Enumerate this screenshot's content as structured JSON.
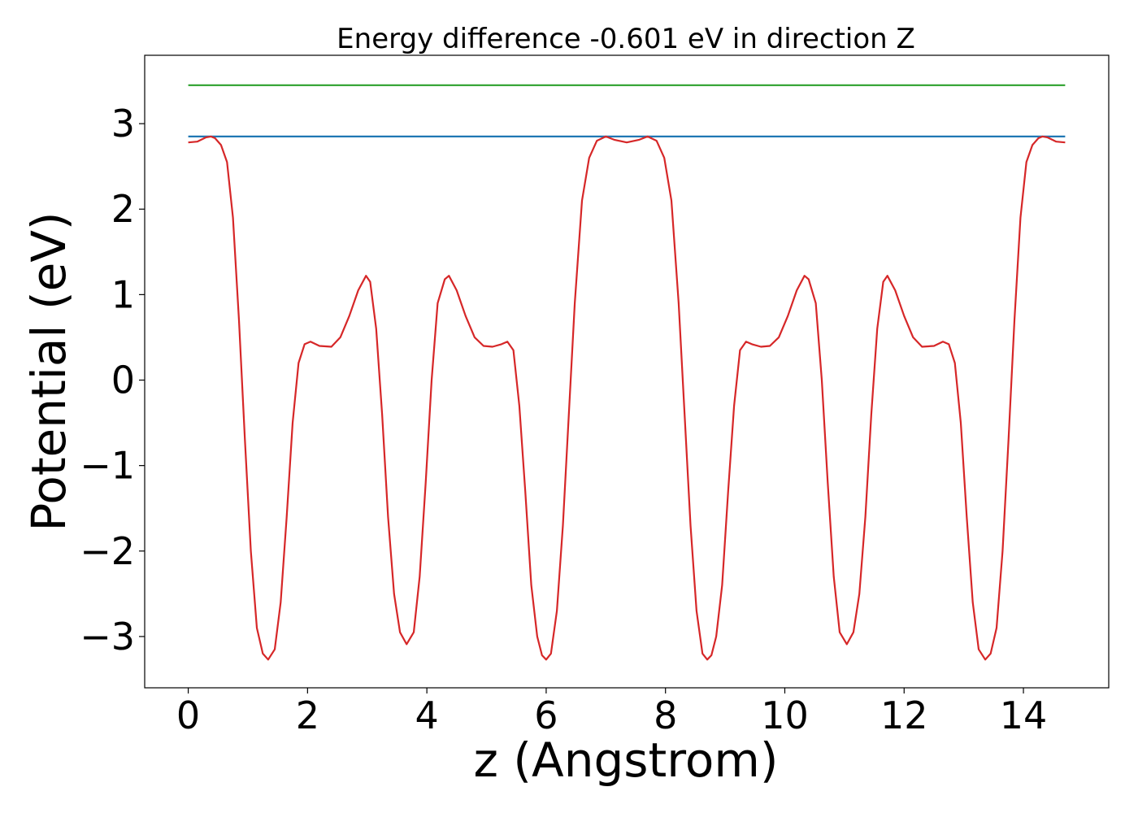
{
  "chart_data": {
    "type": "line",
    "title": "Energy difference -0.601 eV in direction Z",
    "xlabel": "z (Angstrom)",
    "ylabel": "Potential (eV)",
    "xlim": [
      -0.73,
      15.43
    ],
    "ylim": [
      -3.6,
      3.8
    ],
    "x_ticks": [
      0,
      2,
      4,
      6,
      8,
      10,
      12,
      14
    ],
    "y_ticks": [
      -3,
      -2,
      -1,
      0,
      1,
      2,
      3
    ],
    "x_tick_labels": [
      "0",
      "2",
      "4",
      "6",
      "8",
      "10",
      "12",
      "14"
    ],
    "y_tick_labels": [
      "−3",
      "−2",
      "−1",
      "0",
      "1",
      "2",
      "3"
    ],
    "grid": false,
    "series": [
      {
        "color": "#2ca02c",
        "points": [
          [
            0,
            3.45
          ],
          [
            14.7,
            3.45
          ]
        ]
      },
      {
        "color": "#1f77b4",
        "points": [
          [
            0,
            2.85
          ],
          [
            14.7,
            2.85
          ]
        ]
      },
      {
        "color": "#d62728",
        "points": [
          [
            0.0,
            2.78
          ],
          [
            0.15,
            2.79
          ],
          [
            0.3,
            2.84
          ],
          [
            0.38,
            2.85
          ],
          [
            0.45,
            2.83
          ],
          [
            0.55,
            2.75
          ],
          [
            0.65,
            2.55
          ],
          [
            0.75,
            1.9
          ],
          [
            0.85,
            0.7
          ],
          [
            0.95,
            -0.7
          ],
          [
            1.05,
            -2.0
          ],
          [
            1.15,
            -2.9
          ],
          [
            1.25,
            -3.2
          ],
          [
            1.34,
            -3.27
          ],
          [
            1.45,
            -3.15
          ],
          [
            1.55,
            -2.6
          ],
          [
            1.65,
            -1.6
          ],
          [
            1.75,
            -0.5
          ],
          [
            1.85,
            0.2
          ],
          [
            1.95,
            0.42
          ],
          [
            2.05,
            0.45
          ],
          [
            2.2,
            0.4
          ],
          [
            2.4,
            0.39
          ],
          [
            2.55,
            0.5
          ],
          [
            2.7,
            0.75
          ],
          [
            2.85,
            1.05
          ],
          [
            2.98,
            1.22
          ],
          [
            3.05,
            1.15
          ],
          [
            3.15,
            0.6
          ],
          [
            3.25,
            -0.4
          ],
          [
            3.35,
            -1.6
          ],
          [
            3.45,
            -2.5
          ],
          [
            3.55,
            -2.95
          ],
          [
            3.66,
            -3.09
          ],
          [
            3.78,
            -2.95
          ],
          [
            3.88,
            -2.3
          ],
          [
            3.98,
            -1.2
          ],
          [
            4.08,
            0.0
          ],
          [
            4.18,
            0.9
          ],
          [
            4.3,
            1.18
          ],
          [
            4.37,
            1.22
          ],
          [
            4.5,
            1.05
          ],
          [
            4.65,
            0.75
          ],
          [
            4.8,
            0.5
          ],
          [
            4.95,
            0.4
          ],
          [
            5.1,
            0.39
          ],
          [
            5.25,
            0.42
          ],
          [
            5.35,
            0.45
          ],
          [
            5.45,
            0.35
          ],
          [
            5.55,
            -0.3
          ],
          [
            5.65,
            -1.3
          ],
          [
            5.75,
            -2.4
          ],
          [
            5.85,
            -3.0
          ],
          [
            5.93,
            -3.22
          ],
          [
            6.0,
            -3.27
          ],
          [
            6.08,
            -3.2
          ],
          [
            6.18,
            -2.7
          ],
          [
            6.28,
            -1.7
          ],
          [
            6.38,
            -0.4
          ],
          [
            6.48,
            0.9
          ],
          [
            6.6,
            2.1
          ],
          [
            6.72,
            2.6
          ],
          [
            6.85,
            2.8
          ],
          [
            7.0,
            2.85
          ],
          [
            7.15,
            2.81
          ],
          [
            7.35,
            2.78
          ],
          [
            7.55,
            2.81
          ],
          [
            7.7,
            2.85
          ],
          [
            7.85,
            2.8
          ],
          [
            7.98,
            2.6
          ],
          [
            8.1,
            2.1
          ],
          [
            8.22,
            0.9
          ],
          [
            8.32,
            -0.4
          ],
          [
            8.42,
            -1.7
          ],
          [
            8.52,
            -2.7
          ],
          [
            8.62,
            -3.2
          ],
          [
            8.7,
            -3.27
          ],
          [
            8.77,
            -3.22
          ],
          [
            8.85,
            -3.0
          ],
          [
            8.95,
            -2.4
          ],
          [
            9.05,
            -1.3
          ],
          [
            9.15,
            -0.3
          ],
          [
            9.25,
            0.35
          ],
          [
            9.35,
            0.45
          ],
          [
            9.45,
            0.42
          ],
          [
            9.6,
            0.39
          ],
          [
            9.75,
            0.4
          ],
          [
            9.9,
            0.5
          ],
          [
            10.05,
            0.75
          ],
          [
            10.2,
            1.05
          ],
          [
            10.33,
            1.22
          ],
          [
            10.4,
            1.18
          ],
          [
            10.52,
            0.9
          ],
          [
            10.62,
            0.0
          ],
          [
            10.72,
            -1.2
          ],
          [
            10.82,
            -2.3
          ],
          [
            10.92,
            -2.95
          ],
          [
            11.04,
            -3.09
          ],
          [
            11.15,
            -2.95
          ],
          [
            11.25,
            -2.5
          ],
          [
            11.35,
            -1.6
          ],
          [
            11.45,
            -0.4
          ],
          [
            11.55,
            0.6
          ],
          [
            11.65,
            1.15
          ],
          [
            11.72,
            1.22
          ],
          [
            11.85,
            1.05
          ],
          [
            12.0,
            0.75
          ],
          [
            12.15,
            0.5
          ],
          [
            12.3,
            0.39
          ],
          [
            12.5,
            0.4
          ],
          [
            12.65,
            0.45
          ],
          [
            12.75,
            0.42
          ],
          [
            12.85,
            0.2
          ],
          [
            12.95,
            -0.5
          ],
          [
            13.05,
            -1.6
          ],
          [
            13.15,
            -2.6
          ],
          [
            13.25,
            -3.15
          ],
          [
            13.36,
            -3.27
          ],
          [
            13.45,
            -3.2
          ],
          [
            13.55,
            -2.9
          ],
          [
            13.65,
            -2.0
          ],
          [
            13.75,
            -0.7
          ],
          [
            13.85,
            0.7
          ],
          [
            13.95,
            1.9
          ],
          [
            14.05,
            2.55
          ],
          [
            14.15,
            2.75
          ],
          [
            14.25,
            2.83
          ],
          [
            14.32,
            2.85
          ],
          [
            14.4,
            2.84
          ],
          [
            14.55,
            2.79
          ],
          [
            14.7,
            2.78
          ]
        ]
      }
    ]
  }
}
